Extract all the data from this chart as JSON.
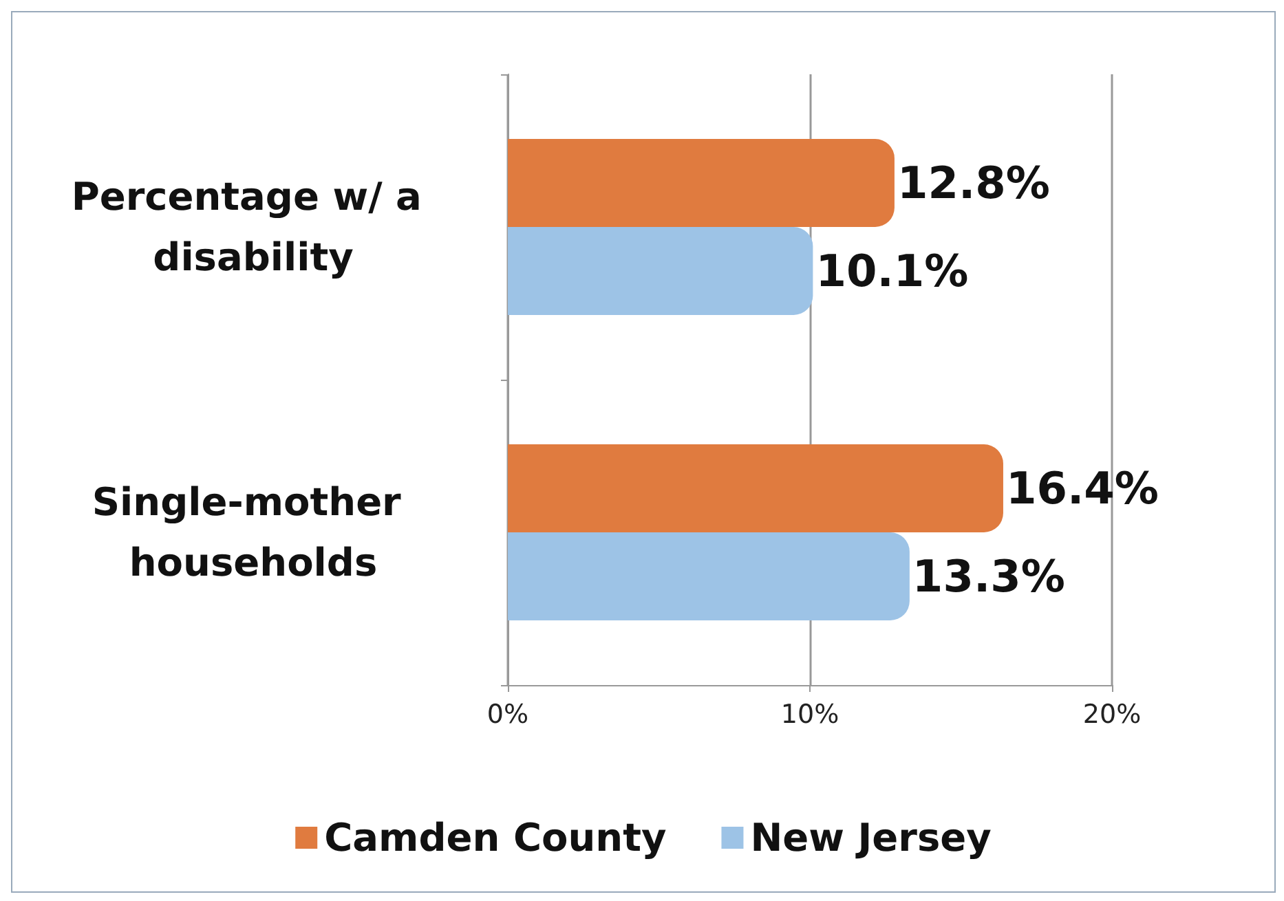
{
  "chart_data": {
    "type": "bar",
    "orientation": "horizontal",
    "categories": [
      "Percentage w/ a disability",
      "Single-mother households"
    ],
    "series": [
      {
        "name": "Camden County",
        "color": "#e07b3f",
        "values": [
          12.8,
          16.4
        ],
        "value_labels": [
          "12.8%",
          "16.4%"
        ]
      },
      {
        "name": "New Jersey",
        "color": "#9dc3e6",
        "values": [
          10.1,
          13.3
        ],
        "value_labels": [
          "10.1%",
          "13.3%"
        ]
      }
    ],
    "xlim": [
      0,
      20
    ],
    "xticks": [
      {
        "value": 0,
        "label": "0%"
      },
      {
        "value": 10,
        "label": "10%"
      },
      {
        "value": 20,
        "label": "20%"
      }
    ],
    "grid": "x",
    "legend": "bottom"
  }
}
